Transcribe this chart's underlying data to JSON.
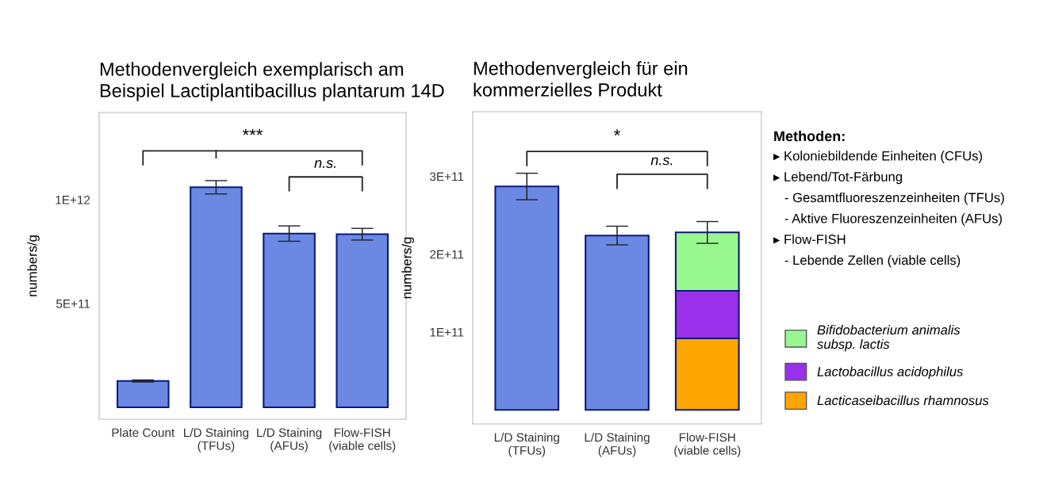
{
  "chart_data": [
    {
      "type": "bar",
      "title": "Methodenvergleich exemplarisch am\nBeispiel Lactiplantibacillus plantarum 14D",
      "ylabel": "numbers/g",
      "categories": [
        "Plate Count",
        "L/D Staining\n(TFUs)",
        "L/D Staining\n(AFUs)",
        "Flow-FISH\n(viable cells)"
      ],
      "values": [
        127000000000.0,
        1060000000000.0,
        837000000000.0,
        834000000000.0
      ],
      "color": "#6b89e3",
      "errors": [
        5000000000.0,
        32000000000.0,
        37000000000.0,
        28000000000.0
      ],
      "ylim": [
        -57000000000.0,
        1420000000000.0
      ],
      "yticks": [
        {
          "value": 500000000000.0,
          "label": "5E+11"
        },
        {
          "value": 1000000000000.0,
          "label": "1E+12"
        }
      ],
      "grid": false,
      "legend": false,
      "annotations": [
        "***",
        "n.s."
      ]
    },
    {
      "type": "bar",
      "title": "Methodenvergleich für ein\nkommerzielles Produkt",
      "ylabel": "numbers/g",
      "stacked": true,
      "categories": [
        "L/D Staining\n(TFUs)",
        "L/D Staining\n(AFUs)",
        "Flow-FISH\n(viable cells)"
      ],
      "series": [
        {
          "color": "#6b89e3",
          "values": [
            287000000000.0,
            224000000000.0,
            null
          ],
          "errors": [
            17000000000.0,
            12000000000.0,
            null
          ]
        },
        {
          "name": "Lacticaseibacillus rhamnosus",
          "color": "#ffa500",
          "values": [
            null,
            null,
            92000000000.0
          ]
        },
        {
          "name": "Lactobacillus acidophilus",
          "color": "#9b30ea",
          "values": [
            null,
            null,
            61000000000.0
          ]
        },
        {
          "name": "Bifidobacterium animalis\nsubsp. lactis",
          "color": "#98f78f",
          "values": [
            null,
            null,
            75000000000.0
          ],
          "errors": [
            null,
            null,
            14000000000.0
          ]
        }
      ],
      "ylim": [
        -18000000000.0,
        383000000000.0
      ],
      "yticks": [
        {
          "value": 100000000000.0,
          "label": "1E+11"
        },
        {
          "value": 200000000000.0,
          "label": "2E+11"
        },
        {
          "value": 300000000000.0,
          "label": "3E+11"
        }
      ],
      "grid": false,
      "legend": "right",
      "annotations": [
        "*",
        "n.s."
      ]
    },
    {
      "type": "other",
      "title": "Methoden:",
      "annotations": [
        "▸ Koloniebildende Einheiten (CFUs)",
        "▸ Lebend/Tot-Färbung",
        "   - Gesamtfluoreszenzeinheiten (TFUs)",
        "   - Aktive Fluoreszenzeinheiten (AFUs)",
        "▸ Flow-FISH",
        "   - Lebende Zellen (viable cells)"
      ]
    }
  ]
}
